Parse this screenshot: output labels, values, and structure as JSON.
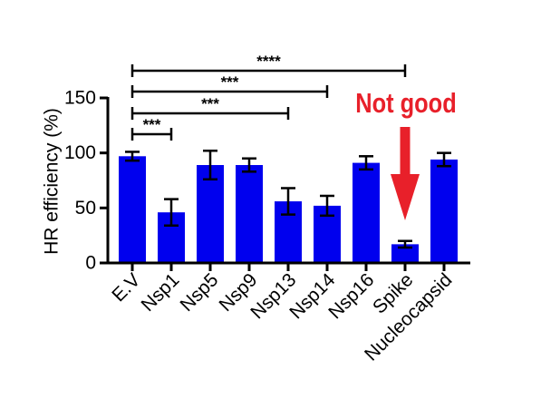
{
  "chart_data": {
    "type": "bar",
    "categories": [
      "E.V",
      "Nsp1",
      "Nsp5",
      "Nsp9",
      "Nsp13",
      "Nsp14",
      "Nsp16",
      "Spike",
      "Nucleocapsid"
    ],
    "values": [
      97,
      46,
      89,
      89,
      56,
      52,
      91,
      17,
      94
    ],
    "errors": [
      4,
      12,
      13,
      6,
      12,
      9,
      6,
      3,
      6
    ],
    "title": "",
    "xlabel": "",
    "ylabel": "HR efficiency (%)",
    "ylim": [
      0,
      150
    ],
    "yticks": [
      0,
      50,
      100,
      150
    ],
    "bar_color": "#0000ee",
    "grid": false,
    "significance": [
      {
        "from": "E.V",
        "to": "Spike",
        "label": "****"
      },
      {
        "from": "E.V",
        "to": "Nsp14",
        "label": "***"
      },
      {
        "from": "E.V",
        "to": "Nsp13",
        "label": "***"
      },
      {
        "from": "E.V",
        "to": "Nsp1",
        "label": "***"
      }
    ],
    "annotation": {
      "text": "Not good",
      "target": "Spike",
      "color": "#e8202a"
    }
  }
}
